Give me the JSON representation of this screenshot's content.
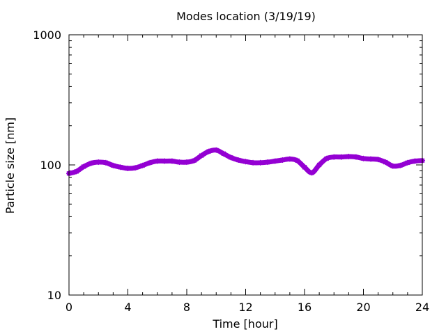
{
  "chart_data": {
    "type": "line",
    "title": "Modes location (3/19/19)",
    "xlabel": "Time [hour]",
    "ylabel": "Particle size [nm]",
    "xlim": [
      0,
      24
    ],
    "ylim": [
      10,
      1000
    ],
    "yscale": "log",
    "xticks": [
      0,
      4,
      8,
      12,
      16,
      20,
      24
    ],
    "xtick_labels": [
      "0",
      "4",
      "8",
      "12",
      "16",
      "20",
      "24"
    ],
    "yticks": [
      10,
      100,
      1000
    ],
    "ytick_labels": [
      "10",
      "100",
      "1000"
    ],
    "grid": false,
    "legend": "none",
    "series": [
      {
        "color": "#9400d3",
        "marker": "star",
        "x": [
          0,
          0.5,
          1,
          1.5,
          2,
          2.5,
          3,
          3.5,
          4,
          4.5,
          5,
          5.5,
          6,
          6.5,
          7,
          7.5,
          8,
          8.5,
          9,
          9.5,
          10,
          10.5,
          11,
          11.5,
          12,
          12.5,
          13,
          13.5,
          14,
          14.5,
          15,
          15.5,
          16,
          16.5,
          17,
          17.5,
          18,
          18.5,
          19,
          19.5,
          20,
          20.5,
          21,
          21.5,
          22,
          22.5,
          23,
          23.5,
          24
        ],
        "y": [
          86,
          89,
          97,
          103,
          105,
          104,
          99,
          96,
          94,
          95,
          99,
          104,
          107,
          107,
          107,
          105,
          105,
          108,
          118,
          127,
          130,
          122,
          114,
          109,
          106,
          104,
          104,
          105,
          107,
          109,
          111,
          108,
          96,
          87,
          100,
          112,
          115,
          115,
          116,
          115,
          112,
          111,
          110,
          105,
          98,
          99,
          104,
          107,
          108
        ]
      }
    ]
  }
}
